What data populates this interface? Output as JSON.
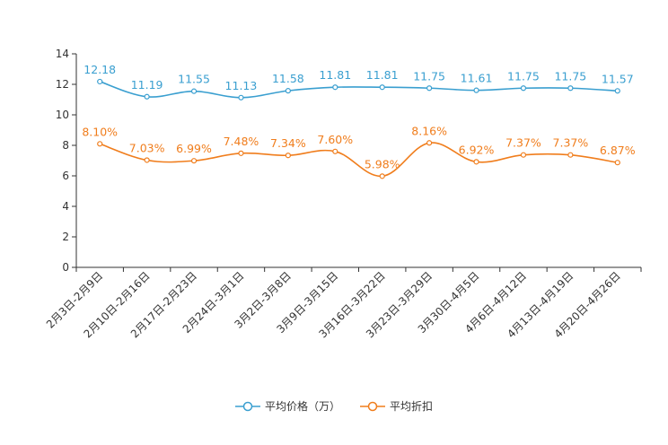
{
  "chart_data": {
    "type": "line",
    "categories": [
      "2月3日-2月9日",
      "2月10日-2月16日",
      "2月17日-2月23日",
      "2月24日-3月1日",
      "3月2日-3月8日",
      "3月9日-3月15日",
      "3月16日-3月22日",
      "3月23日-3月29日",
      "3月30日-4月5日",
      "4月6日-4月12日",
      "4月13日-4月19日",
      "4月20日-4月26日"
    ],
    "ylim": [
      0,
      14
    ],
    "yticks": [
      "0",
      "2",
      "4",
      "6",
      "8",
      "10",
      "12",
      "14"
    ],
    "series": [
      {
        "name": "平均价格（万）",
        "color": "#3a9fd0",
        "values": [
          12.18,
          11.19,
          11.55,
          11.13,
          11.58,
          11.81,
          11.81,
          11.75,
          11.61,
          11.75,
          11.75,
          11.57
        ],
        "labels": [
          "12.18",
          "11.19",
          "11.55",
          "11.13",
          "11.58",
          "11.81",
          "11.81",
          "11.75",
          "11.61",
          "11.75",
          "11.75",
          "11.57"
        ]
      },
      {
        "name": "平均折扣",
        "color": "#f07d1c",
        "values": [
          8.1,
          7.03,
          6.99,
          7.48,
          7.34,
          7.6,
          5.98,
          8.16,
          6.92,
          7.37,
          7.37,
          6.87
        ],
        "labels": [
          "8.10%",
          "7.03%",
          "6.99%",
          "7.48%",
          "7.34%",
          "7.60%",
          "5.98%",
          "8.16%",
          "6.92%",
          "7.37%",
          "7.37%",
          "6.87%"
        ]
      }
    ],
    "legend_position": "bottom-center"
  }
}
